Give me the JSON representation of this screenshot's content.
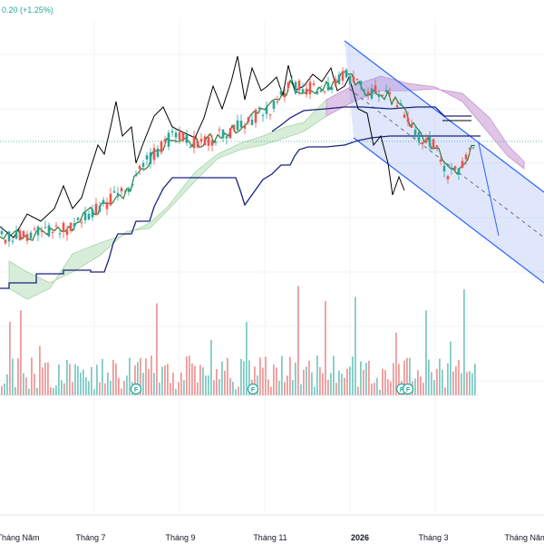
{
  "header": {
    "change_label": "0.20 (+1.25%)"
  },
  "colors": {
    "up": "#26a69a",
    "down": "#ef5350",
    "kijun": "#1a237e",
    "tenkan": "#2e7d32",
    "chikou": "#000000",
    "cloud_bull": "#c8e6c9",
    "cloud_bear": "#e1bee7",
    "channel": "#2962ff",
    "channel_fill": "#90a8f5"
  },
  "chart_data": {
    "type": "candlestick",
    "indicators": [
      "Ichimoku Cloud",
      "Volume",
      "Descending parallel channel"
    ],
    "x_ticks": [
      {
        "label": "Tháng Năm",
        "bold": false
      },
      {
        "label": "Tháng 7",
        "bold": false
      },
      {
        "label": "Tháng 9",
        "bold": false
      },
      {
        "label": "Tháng 11",
        "bold": false
      },
      {
        "label": "2026",
        "bold": true
      },
      {
        "label": "Tháng 3",
        "bold": false
      },
      {
        "label": "Tháng Năm",
        "bold": false
      }
    ],
    "dividend_markers": [
      "F",
      "F",
      "F",
      "F"
    ],
    "grid": true,
    "legend": "none"
  }
}
